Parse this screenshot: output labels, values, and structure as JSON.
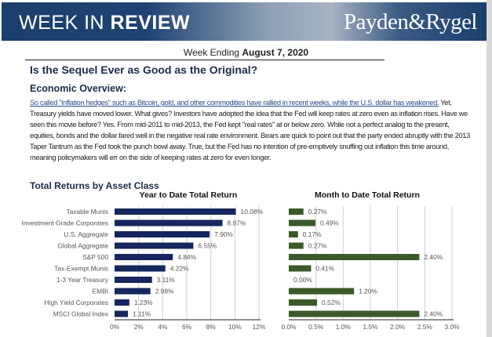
{
  "header": {
    "brand_light": "WEEK IN ",
    "brand_bold": "REVIEW",
    "logo": "Payden&Rygel"
  },
  "week": {
    "prefix": "Week Ending ",
    "date": "August 7, 2020"
  },
  "title": "Is the Sequel Ever as Good as the Original?",
  "overview": {
    "heading": "Economic Overview:",
    "link_text": "So called \"inflation hedges\" such as Bitcoin, gold, and other commodities have rallied in recent weeks, while the U.S. dollar has weakened.",
    "text": " Yet, Treasury yields have moved lower. What gives? Investors have adopted the idea that the Fed will keep rates at zero even as inflation rises. Have we seen this movie before? Yes. From mid-2011 to mid-2013, the Fed kept \"real rates\" at or below zero. While not a perfect analog to the present, equities, bonds and the dollar fared well in the negative real rate environment. Bears are quick to point out that the party ended abruptly with the 2013 Taper Tantrum as the Fed took the punch bowl away. True, but the Fed has no intention of pre-emptively snuffing out inflation this time around, meaning policymakers will err on the side of keeping rates at zero for even longer."
  },
  "section_title": "Total Returns by Asset Class",
  "colors": {
    "header": "#1b3e6b",
    "ytd_bar": "#15275e",
    "mtd_bar": "#3a5a2a"
  },
  "chart_data": [
    {
      "type": "bar",
      "orientation": "horizontal",
      "title": "Year to Date Total Return",
      "categories": [
        "Taxable Munis",
        "Investment Grade Corporates",
        "U.S. Aggregate",
        "Global Aggregate",
        "S&P 500",
        "Tax-Exempt Munis",
        "1-3 Year Treasury",
        "EMBI",
        "High Yield Corporates",
        "MSCI Global Index"
      ],
      "values": [
        10.08,
        8.97,
        7.9,
        6.55,
        4.84,
        4.22,
        3.11,
        2.98,
        1.23,
        1.11
      ],
      "data_labels": [
        "10.08%",
        "8.97%",
        "7.90%",
        "6.55%",
        "4.84%",
        "4.22%",
        "3.11%",
        "2.98%",
        "1.23%",
        "1.11%"
      ],
      "xlim": [
        0,
        12
      ],
      "ticks": [
        "0%",
        "2%",
        "4%",
        "6%",
        "8%",
        "10%",
        "12%"
      ],
      "grid": true
    },
    {
      "type": "bar",
      "orientation": "horizontal",
      "title": "Month to Date Total Return",
      "categories": [
        "Taxable Munis",
        "Investment Grade Corporates",
        "U.S. Aggregate",
        "Global Aggregate",
        "S&P 500",
        "Tax-Exempt Munis",
        "1-3 Year Treasury",
        "EMBI",
        "High Yield Corporates",
        "MSCI Global Index"
      ],
      "values": [
        0.27,
        0.49,
        0.17,
        0.27,
        2.4,
        0.41,
        0.0,
        1.2,
        0.52,
        2.4
      ],
      "data_labels": [
        "0.27%",
        "0.49%",
        "0.17%",
        "0.27%",
        "2.40%",
        "0.41%",
        "0.00%",
        "1.20%",
        "0.52%",
        "2.40%"
      ],
      "xlim": [
        0,
        3
      ],
      "ticks": [
        "0.0%",
        "0.5%",
        "1.0%",
        "1.5%",
        "2.0%",
        "2.5%",
        "3.0%"
      ],
      "grid": true
    }
  ]
}
